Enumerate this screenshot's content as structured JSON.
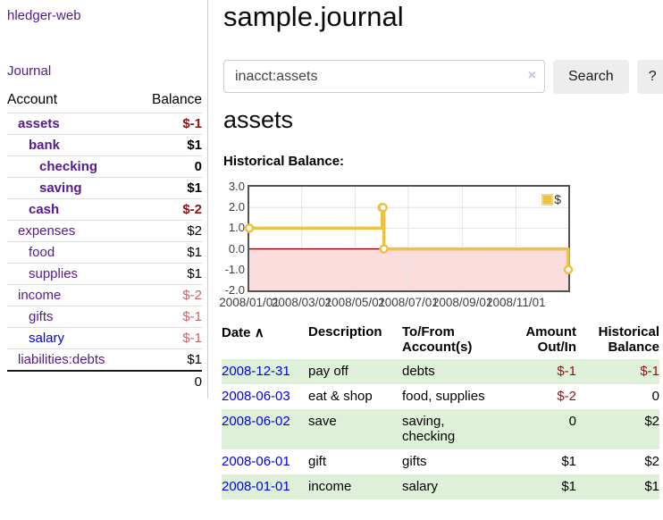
{
  "app": {
    "title": "hledger-web",
    "nav_journal": "Journal"
  },
  "sidebar": {
    "header": {
      "account": "Account",
      "balance": "Balance"
    },
    "accounts": [
      {
        "name": "assets",
        "balance": "$-1"
      },
      {
        "name": "bank",
        "balance": "$1"
      },
      {
        "name": "checking",
        "balance": "0"
      },
      {
        "name": "saving",
        "balance": "$1"
      },
      {
        "name": "cash",
        "balance": "$-2"
      },
      {
        "name": "expenses",
        "balance": "$2"
      },
      {
        "name": "food",
        "balance": "$1"
      },
      {
        "name": "supplies",
        "balance": "$1"
      },
      {
        "name": "income",
        "balance": "$-2"
      },
      {
        "name": "gifts",
        "balance": "$-1"
      },
      {
        "name": "salary",
        "balance": "$-1"
      },
      {
        "name": "liabilities:debts",
        "balance": "$1"
      }
    ],
    "total": "0"
  },
  "main": {
    "title": "sample.journal",
    "search": {
      "value": "inacct:assets",
      "clear_icon": "×",
      "button_label": "Search",
      "help_label": "?"
    },
    "account_heading": "assets",
    "chart_title": "Historical Balance:",
    "register": {
      "headers": {
        "date": "Date",
        "sort_icon": "∧",
        "description": "Description",
        "to_from": "To/From Account(s)",
        "amount": "Amount Out/In",
        "balance": "Historical Balance"
      },
      "rows": [
        {
          "date": "2008-12-31",
          "description": "pay off",
          "to_from": "debts",
          "amount": "$-1",
          "balance": "$-1"
        },
        {
          "date": "2008-06-03",
          "description": "eat & shop",
          "to_from": "food, supplies",
          "amount": "$-2",
          "balance": "0"
        },
        {
          "date": "2008-06-02",
          "description": "save",
          "to_from": "saving,\nchecking",
          "amount": "0",
          "balance": "$2"
        },
        {
          "date": "2008-06-01",
          "description": "gift",
          "to_from": "gifts",
          "amount": "$1",
          "balance": "$2"
        },
        {
          "date": "2008-01-01",
          "description": "income",
          "to_from": "salary",
          "amount": "$1",
          "balance": "$1"
        }
      ]
    }
  },
  "chart_data": {
    "type": "line",
    "step": true,
    "title": "Historical Balance:",
    "legend": "$",
    "legend_position": "top-right",
    "grid": true,
    "ylim": [
      -2,
      3
    ],
    "yticks": [
      3,
      2,
      1,
      0,
      -1,
      -2
    ],
    "x_range_days": [
      0,
      365
    ],
    "xticks": [
      {
        "label": "2008/01/01",
        "day": 0
      },
      {
        "label": "2008/03/01",
        "day": 60
      },
      {
        "label": "2008/05/01",
        "day": 121
      },
      {
        "label": "2008/07/01",
        "day": 182
      },
      {
        "label": "2008/09/01",
        "day": 244
      },
      {
        "label": "2008/11/01",
        "day": 305
      }
    ],
    "series": [
      {
        "name": "$",
        "color": "#edc240",
        "points": [
          {
            "date": "2008-01-01",
            "day": 0,
            "value": 1
          },
          {
            "date": "2008-06-01",
            "day": 152,
            "value": 2
          },
          {
            "date": "2008-06-02",
            "day": 153,
            "value": 2
          },
          {
            "date": "2008-06-03",
            "day": 154,
            "value": 0
          },
          {
            "date": "2008-12-31",
            "day": 365,
            "value": -1
          }
        ]
      }
    ],
    "negative_fill": "#fbdcdc",
    "zero_line_color": "#8b0000",
    "grid_color": "#e3e3e3",
    "border_color": "#545454"
  },
  "colors": {
    "link_visited_purple": "#551a8b",
    "link_blue": "#0000ee",
    "negative_dark": "#8b1414",
    "negative_light": "#bf6868",
    "row_green": "#dff0d8",
    "series_gold": "#edc240"
  }
}
